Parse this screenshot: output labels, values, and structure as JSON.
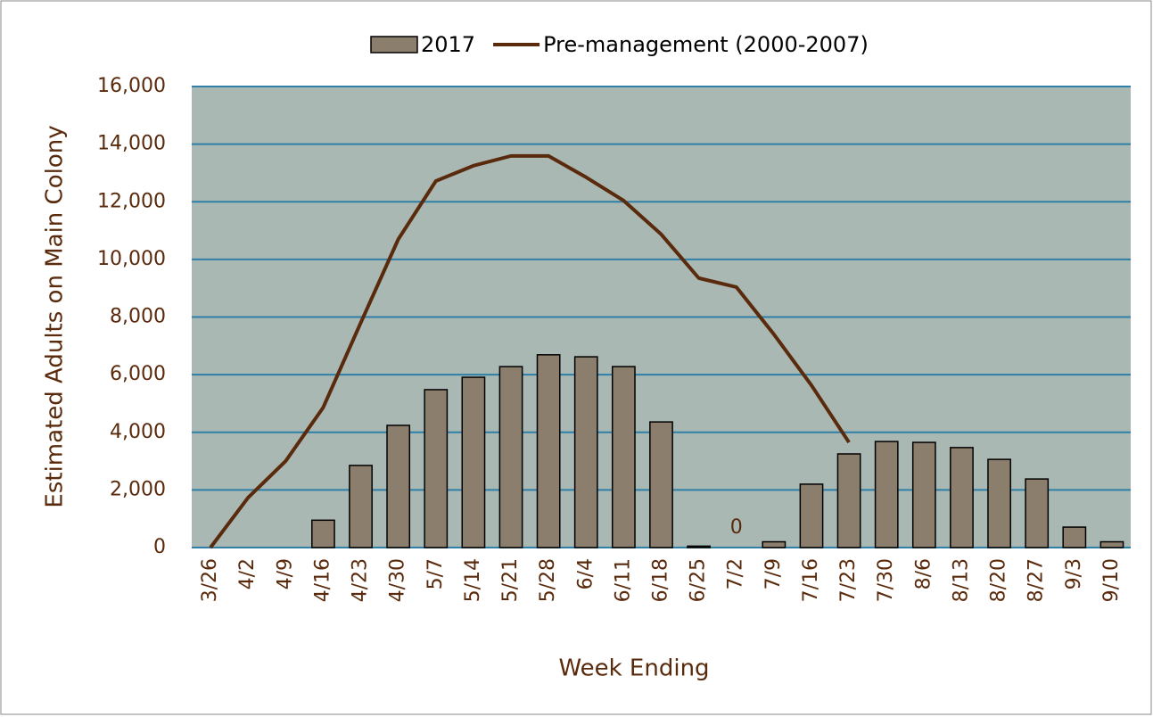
{
  "chart_data": {
    "type": "bar-line",
    "x_label": "Week Ending",
    "y_label": "Estimated Adults on Main Colony",
    "categories": [
      "3/26",
      "4/2",
      "4/9",
      "4/16",
      "4/23",
      "4/30",
      "5/7",
      "5/14",
      "5/21",
      "5/28",
      "6/4",
      "6/11",
      "6/18",
      "6/25",
      "7/2",
      "7/9",
      "7/16",
      "7/23",
      "7/30",
      "8/6",
      "8/13",
      "8/20",
      "8/27",
      "9/3",
      "9/10"
    ],
    "series": [
      {
        "name": "2017",
        "type": "bar",
        "color": "#8c7e6c",
        "values": [
          null,
          null,
          null,
          950,
          2850,
          4240,
          5480,
          5910,
          6280,
          6690,
          6620,
          6280,
          4360,
          50,
          0,
          200,
          2200,
          3250,
          3680,
          3650,
          3470,
          3060,
          2380,
          710,
          200
        ],
        "value_labels": [
          null,
          null,
          null,
          null,
          null,
          null,
          null,
          null,
          null,
          null,
          null,
          null,
          null,
          null,
          "0",
          null,
          null,
          null,
          null,
          null,
          null,
          null,
          null,
          null,
          null
        ]
      },
      {
        "name": "Pre-management (2000-2007)",
        "type": "line",
        "color": "#5a2a0c",
        "values": [
          0,
          1730,
          3000,
          4860,
          7800,
          10700,
          12720,
          13250,
          13590,
          13590,
          12850,
          12040,
          10870,
          9350,
          9040,
          7400,
          5630,
          3650,
          null,
          null,
          null,
          null,
          null,
          null,
          null
        ]
      }
    ],
    "ylim": [
      0,
      16000
    ],
    "yticks": [
      0,
      {
        "value": 2000,
        "label": "2,000"
      },
      {
        "value": 4000,
        "label": "4,000"
      },
      {
        "value": 6000,
        "label": "6,000"
      },
      {
        "value": 8000,
        "label": "8,000"
      },
      {
        "value": 10000,
        "label": "10,000"
      },
      {
        "value": 12000,
        "label": "12,000"
      },
      {
        "value": 14000,
        "label": "14,000"
      },
      {
        "value": 16000,
        "label": "16,000"
      }
    ],
    "grid": true,
    "legend": "top"
  }
}
